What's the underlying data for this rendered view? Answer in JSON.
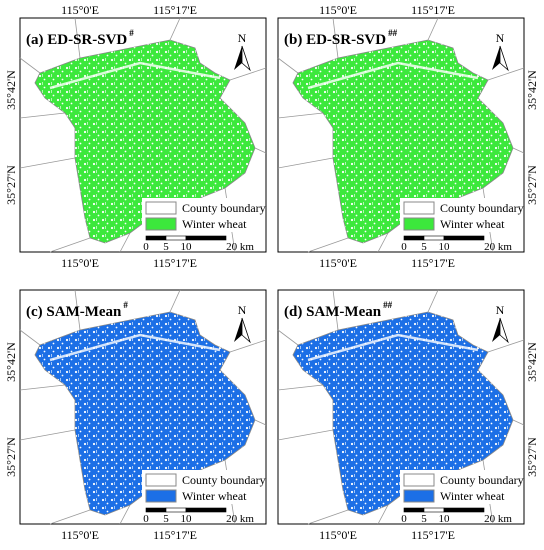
{
  "panels": [
    {
      "title": "(a) ED-SR-SVD",
      "superscript": "#",
      "color": "#3ce83c",
      "side": "left",
      "top_ticks": [
        "115°0'E",
        "115°17'E"
      ],
      "bottom_ticks": [
        "115°0'E",
        "115°17'E"
      ],
      "side_ticks": [
        "35°42'N",
        "35°27'N"
      ]
    },
    {
      "title": "(b) ED-SR-SVD",
      "superscript": "##",
      "color": "#3ce83c",
      "side": "right",
      "top_ticks": [
        "115°0'E",
        "115°17'E"
      ],
      "bottom_ticks": [
        "115°0'E",
        "115°17'E"
      ],
      "side_ticks": [
        "35°42'N",
        "35°27'N"
      ]
    },
    {
      "title": "(c) SAM-Mean",
      "superscript": "#",
      "color": "#1c6fe6",
      "side": "left",
      "bottom_ticks": [
        "115°0'E",
        "115°17'E"
      ],
      "side_ticks": [
        "35°42'N",
        "35°27'N"
      ]
    },
    {
      "title": "(d) SAM-Mean",
      "superscript": "##",
      "color": "#1c6fe6",
      "side": "right",
      "bottom_ticks": [
        "115°0'E",
        "115°17'E"
      ],
      "side_ticks": [
        "35°42'N",
        "35°27'N"
      ]
    }
  ],
  "legend": [
    "County boundary",
    "Winter wheat"
  ],
  "scale_labels": [
    "0",
    "5",
    "10",
    "20 km"
  ],
  "north": "N"
}
